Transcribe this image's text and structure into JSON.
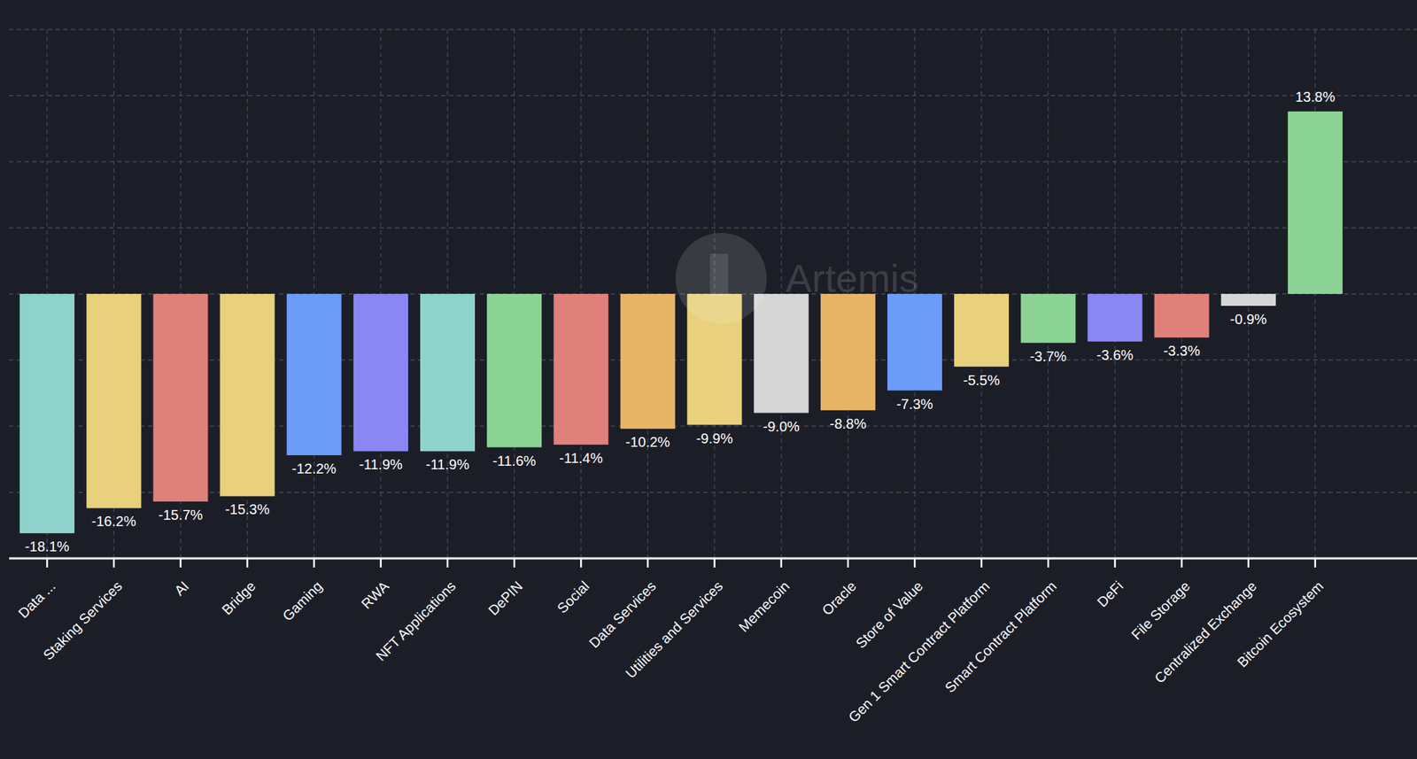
{
  "chart_data": {
    "type": "bar",
    "categories": [
      "Data ...",
      "Staking Services",
      "AI",
      "Bridge",
      "Gaming",
      "RWA",
      "NFT Applications",
      "DePIN",
      "Social",
      "Data Services",
      "Utilities and Services",
      "Memecoin",
      "Oracle",
      "Store of Value",
      "Gen 1 Smart Contract Platform",
      "Smart Contract Platform",
      "DeFi",
      "File Storage",
      "Centralized Exchange",
      "Bitcoin Ecosystem"
    ],
    "values": [
      -18.1,
      -16.2,
      -15.7,
      -15.3,
      -12.2,
      -11.9,
      -11.9,
      -11.6,
      -11.4,
      -10.2,
      -9.9,
      -9.0,
      -8.8,
      -7.3,
      -5.5,
      -3.7,
      -3.6,
      -3.3,
      -0.9,
      13.8
    ],
    "value_labels": [
      "-18.1%",
      "-16.2%",
      "-15.7%",
      "-15.3%",
      "-12.2%",
      "-11.9%",
      "-11.9%",
      "-11.6%",
      "-11.4%",
      "-10.2%",
      "-9.9%",
      "-9.0%",
      "-8.8%",
      "-7.3%",
      "-5.5%",
      "-3.7%",
      "-3.6%",
      "-3.3%",
      "-0.9%",
      "13.8%"
    ],
    "colors": [
      "#8ed3cb",
      "#e8d07c",
      "#e0807a",
      "#e8d07c",
      "#6b9cf8",
      "#8a87f5",
      "#8ed3cb",
      "#8bd495",
      "#e0807a",
      "#e8b466",
      "#e8d07c",
      "#d6d6d6",
      "#e8b466",
      "#6b9cf8",
      "#e8d07c",
      "#8bd495",
      "#8a87f5",
      "#e0807a",
      "#d6d6d6",
      "#8bd495"
    ],
    "ylim": [
      -20,
      20
    ],
    "yticks": [
      -20,
      -15,
      -10,
      -5,
      0,
      5,
      10,
      15,
      20
    ],
    "grid": true,
    "data_labels": true,
    "tick_labels": "x",
    "annotations": [
      "Artemis"
    ]
  }
}
